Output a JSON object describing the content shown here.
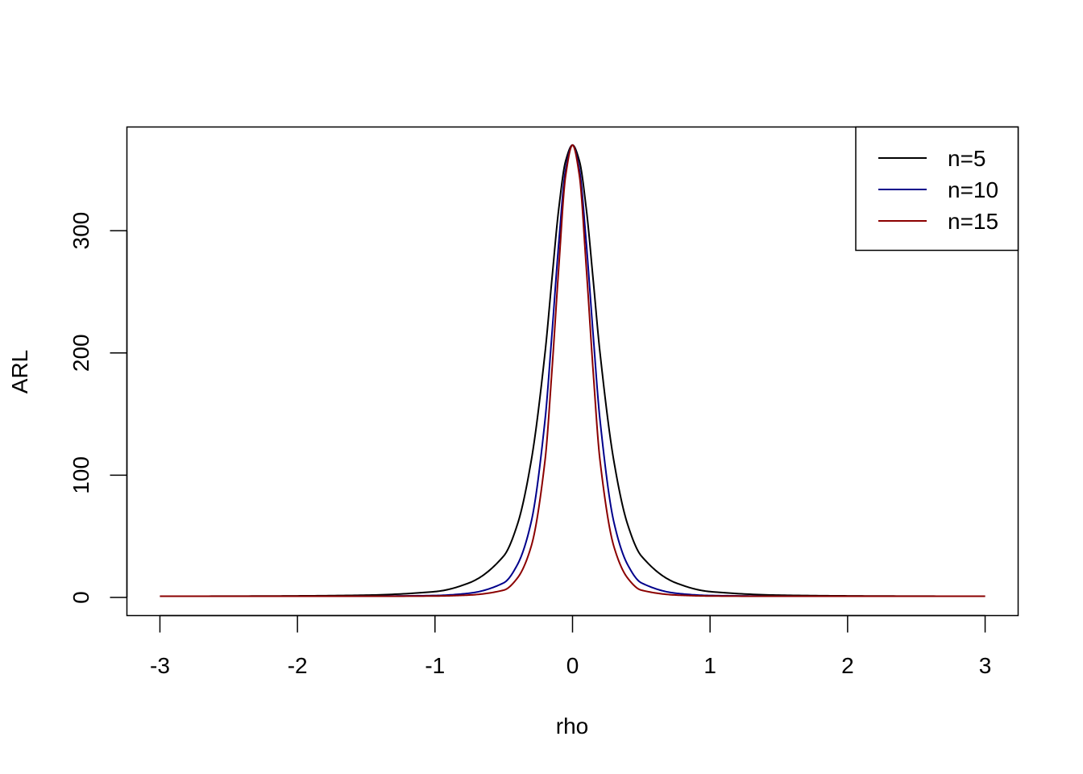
{
  "chart_data": {
    "type": "line",
    "title": "",
    "xlabel": "rho",
    "ylabel": "ARL",
    "xlim": [
      -3.24,
      3.24
    ],
    "ylim": [
      -14.8,
      384.8
    ],
    "x_ticks": [
      -3,
      -2,
      -1,
      0,
      1,
      2,
      3
    ],
    "x_tick_labels": [
      "-3",
      "-2",
      "-1",
      "0",
      "1",
      "2",
      "3"
    ],
    "y_ticks": [
      0,
      100,
      200,
      300
    ],
    "y_tick_labels": [
      "0",
      "100",
      "200",
      "300"
    ],
    "grid": false,
    "legend_position": "top-right",
    "x": [
      -3,
      -2.5,
      -2,
      -1.5,
      -1,
      -0.75,
      -0.5,
      -0.4,
      -0.3,
      -0.2,
      -0.15,
      -0.1,
      -0.05,
      0,
      0.05,
      0.1,
      0.15,
      0.2,
      0.3,
      0.4,
      0.5,
      0.75,
      1,
      1.5,
      2,
      2.5,
      3
    ],
    "series": [
      {
        "name": "n=5",
        "color": "#000000",
        "values": [
          1.0,
          1.1,
          1.3,
          1.9,
          4.8,
          12,
          34,
          60,
          112,
          200,
          260,
          318,
          357,
          370,
          357,
          318,
          260,
          200,
          112,
          60,
          34,
          12,
          4.8,
          1.9,
          1.3,
          1.1,
          1.0
        ]
      },
      {
        "name": "n=10",
        "color": "#00008B",
        "values": [
          1.0,
          1.0,
          1.0,
          1.1,
          1.6,
          3.5,
          12,
          27,
          62,
          145,
          215,
          290,
          350,
          370,
          350,
          290,
          215,
          145,
          62,
          27,
          12,
          3.5,
          1.6,
          1.1,
          1.0,
          1.0,
          1.0
        ]
      },
      {
        "name": "n=15",
        "color": "#8B0000",
        "values": [
          1.0,
          1.0,
          1.0,
          1.0,
          1.2,
          2.0,
          6,
          16,
          42,
          112,
          185,
          270,
          345,
          370,
          345,
          270,
          185,
          112,
          42,
          16,
          6,
          2.0,
          1.2,
          1.0,
          1.0,
          1.0,
          1.0
        ]
      }
    ]
  }
}
